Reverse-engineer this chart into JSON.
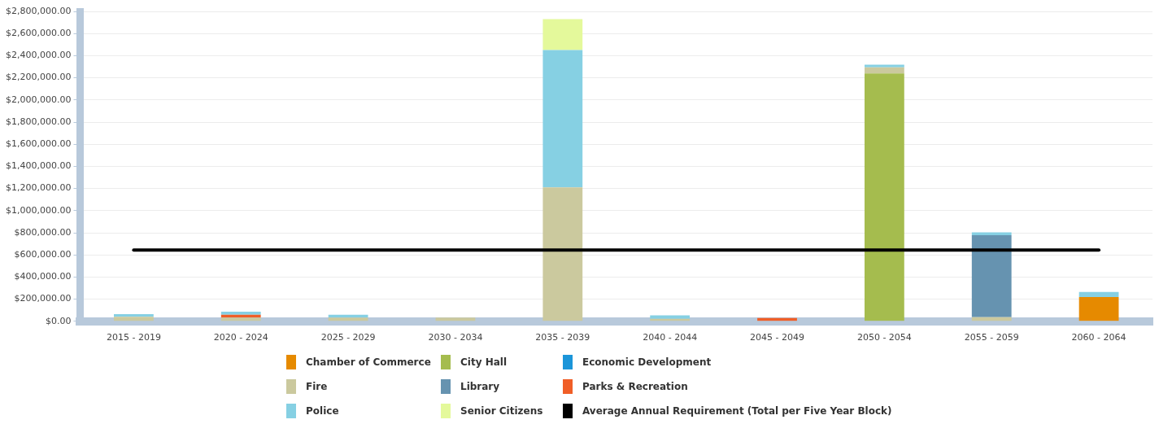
{
  "chart_data": {
    "type": "bar",
    "stacked": true,
    "legend": "bottom",
    "grid": "y",
    "categories": [
      "2015 - 2019",
      "2020 - 2024",
      "2025 - 2029",
      "2030 - 2034",
      "2035 - 2039",
      "2040 - 2044",
      "2045 - 2049",
      "2050 - 2054",
      "2055 - 2059",
      "2060 - 2064"
    ],
    "ylim": [
      0,
      2800000
    ],
    "yticks": [
      {
        "value": 0,
        "label": "$0.00"
      },
      {
        "value": 200000,
        "label": "$200,000.00"
      },
      {
        "value": 400000,
        "label": "$400,000.00"
      },
      {
        "value": 600000,
        "label": "$600,000.00"
      },
      {
        "value": 800000,
        "label": "$800,000.00"
      },
      {
        "value": 1000000,
        "label": "$1,000,000.00"
      },
      {
        "value": 1200000,
        "label": "$1,200,000.00"
      },
      {
        "value": 1400000,
        "label": "$1,400,000.00"
      },
      {
        "value": 1600000,
        "label": "$1,600,000.00"
      },
      {
        "value": 1800000,
        "label": "$1,800,000.00"
      },
      {
        "value": 2000000,
        "label": "$2,000,000.00"
      },
      {
        "value": 2200000,
        "label": "$2,200,000.00"
      },
      {
        "value": 2400000,
        "label": "$2,400,000.00"
      },
      {
        "value": 2600000,
        "label": "$2,600,000.00"
      },
      {
        "value": 2800000,
        "label": "$2,800,000.00"
      }
    ],
    "series": [
      {
        "name": "Chamber of Commerce",
        "color": "#e68a00",
        "values": [
          0,
          0,
          0,
          0,
          0,
          0,
          0,
          0,
          0,
          220000
        ]
      },
      {
        "name": "City Hall",
        "color": "#a5bc4e",
        "values": [
          0,
          0,
          0,
          0,
          0,
          0,
          0,
          2240000,
          0,
          0
        ]
      },
      {
        "name": "Economic Development",
        "color": "#1b95d9",
        "values": [
          0,
          0,
          0,
          0,
          0,
          0,
          0,
          0,
          0,
          0
        ]
      },
      {
        "name": "Fire",
        "color": "#cbc99e",
        "values": [
          40000,
          33000,
          33000,
          33000,
          1210000,
          23000,
          0,
          55000,
          38000,
          0
        ]
      },
      {
        "name": "Library",
        "color": "#6693b0",
        "values": [
          0,
          0,
          0,
          0,
          0,
          0,
          0,
          0,
          740000,
          0
        ]
      },
      {
        "name": "Parks & Recreation",
        "color": "#f05e27",
        "values": [
          0,
          26000,
          0,
          0,
          0,
          0,
          30000,
          0,
          0,
          0
        ]
      },
      {
        "name": "Police",
        "color": "#86d0e3",
        "values": [
          25000,
          28000,
          26000,
          0,
          1240000,
          30000,
          0,
          23000,
          25000,
          45000
        ]
      },
      {
        "name": "Senior Citizens",
        "color": "#e4f99b",
        "values": [
          0,
          0,
          0,
          0,
          280000,
          0,
          0,
          0,
          0,
          0
        ]
      },
      {
        "name": "Average Annual Requirement (Total per Five Year Block)",
        "type": "line",
        "color": "#000000",
        "marker": "none",
        "values": [
          643000,
          643000,
          643000,
          643000,
          643000,
          643000,
          643000,
          643000,
          643000,
          643000
        ]
      }
    ]
  }
}
